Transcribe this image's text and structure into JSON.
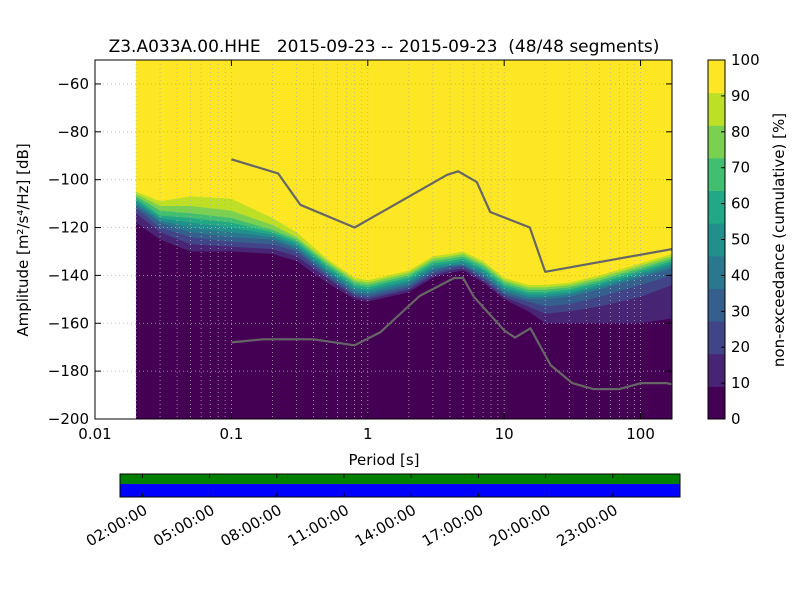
{
  "chart_data": {
    "type": "heatmap",
    "title": "Z3.A033A.00.HHE   2015-09-23 -- 2015-09-23  (48/48 segments)",
    "xlabel": "Period [s]",
    "ylabel": "Amplitude [m²/s⁴/Hz] [dB]",
    "x_scale": "log",
    "xlim": [
      0.01,
      170
    ],
    "ylim": [
      -200,
      -50
    ],
    "x_ticks": [
      {
        "value": 0.01,
        "label": "0.01"
      },
      {
        "value": 0.1,
        "label": "0.1"
      },
      {
        "value": 1,
        "label": "1"
      },
      {
        "value": 10,
        "label": "10"
      },
      {
        "value": 100,
        "label": "100"
      }
    ],
    "y_ticks": [
      {
        "value": -60,
        "label": "−60"
      },
      {
        "value": -80,
        "label": "−80"
      },
      {
        "value": -100,
        "label": "−100"
      },
      {
        "value": -120,
        "label": "−120"
      },
      {
        "value": -140,
        "label": "−140"
      },
      {
        "value": -160,
        "label": "−160"
      },
      {
        "value": -180,
        "label": "−180"
      },
      {
        "value": -200,
        "label": "−200"
      }
    ],
    "grid": true,
    "data_x_start": 0.02,
    "colorbar": {
      "label": "non-exceedance (cumulative) [%]",
      "range": [
        0,
        100
      ],
      "ticks": [
        "0",
        "10",
        "20",
        "30",
        "40",
        "50",
        "60",
        "70",
        "80",
        "90",
        "100"
      ],
      "colors": [
        "#440154",
        "#482475",
        "#414487",
        "#355f8d",
        "#2a788e",
        "#21908d",
        "#22a884",
        "#42be71",
        "#7ad151",
        "#bddf26",
        "#fde725"
      ]
    },
    "contours": [
      {
        "cum": 5,
        "points": [
          [
            0.02,
            -118
          ],
          [
            0.03,
            -125
          ],
          [
            0.05,
            -130
          ],
          [
            0.1,
            -130
          ],
          [
            0.2,
            -131
          ],
          [
            0.3,
            -134
          ],
          [
            0.5,
            -143
          ],
          [
            0.8,
            -150
          ],
          [
            1,
            -151
          ],
          [
            2,
            -147
          ],
          [
            3,
            -141
          ],
          [
            4,
            -139
          ],
          [
            5,
            -138
          ],
          [
            7,
            -143
          ],
          [
            10,
            -150
          ],
          [
            15,
            -155
          ],
          [
            20,
            -160
          ],
          [
            30,
            -160
          ],
          [
            50,
            -160
          ],
          [
            100,
            -160
          ],
          [
            170,
            -158
          ]
        ]
      },
      {
        "cum": 10,
        "points": [
          [
            0.02,
            -114
          ],
          [
            0.03,
            -122
          ],
          [
            0.05,
            -127
          ],
          [
            0.1,
            -128
          ],
          [
            0.2,
            -129
          ],
          [
            0.3,
            -132
          ],
          [
            0.5,
            -141
          ],
          [
            0.8,
            -149
          ],
          [
            1,
            -150
          ],
          [
            2,
            -146
          ],
          [
            3,
            -140
          ],
          [
            4,
            -138
          ],
          [
            5,
            -137
          ],
          [
            7,
            -142
          ],
          [
            10,
            -149
          ],
          [
            15,
            -153
          ],
          [
            20,
            -156
          ],
          [
            30,
            -155
          ],
          [
            50,
            -153
          ],
          [
            100,
            -149
          ],
          [
            170,
            -144
          ]
        ]
      },
      {
        "cum": 20,
        "points": [
          [
            0.02,
            -112
          ],
          [
            0.03,
            -120
          ],
          [
            0.05,
            -124
          ],
          [
            0.1,
            -126
          ],
          [
            0.2,
            -127
          ],
          [
            0.3,
            -130
          ],
          [
            0.5,
            -140
          ],
          [
            0.8,
            -148
          ],
          [
            1,
            -149
          ],
          [
            2,
            -145
          ],
          [
            3,
            -139
          ],
          [
            4,
            -137
          ],
          [
            5,
            -136
          ],
          [
            7,
            -141
          ],
          [
            10,
            -148
          ],
          [
            15,
            -151
          ],
          [
            20,
            -153
          ],
          [
            30,
            -152
          ],
          [
            50,
            -149
          ],
          [
            100,
            -144
          ],
          [
            170,
            -140
          ]
        ]
      },
      {
        "cum": 30,
        "points": [
          [
            0.02,
            -111
          ],
          [
            0.03,
            -118
          ],
          [
            0.05,
            -122
          ],
          [
            0.1,
            -124
          ],
          [
            0.2,
            -125
          ],
          [
            0.3,
            -129
          ],
          [
            0.5,
            -139
          ],
          [
            0.8,
            -147
          ],
          [
            1,
            -148
          ],
          [
            2,
            -144
          ],
          [
            3,
            -138
          ],
          [
            4,
            -136
          ],
          [
            5,
            -136
          ],
          [
            7,
            -140
          ],
          [
            10,
            -147
          ],
          [
            15,
            -150
          ],
          [
            20,
            -150
          ],
          [
            30,
            -149
          ],
          [
            50,
            -146
          ],
          [
            100,
            -141
          ],
          [
            170,
            -137
          ]
        ]
      },
      {
        "cum": 40,
        "points": [
          [
            0.02,
            -110
          ],
          [
            0.03,
            -117
          ],
          [
            0.05,
            -120
          ],
          [
            0.1,
            -122
          ],
          [
            0.2,
            -124
          ],
          [
            0.3,
            -128
          ],
          [
            0.5,
            -138
          ],
          [
            0.8,
            -146
          ],
          [
            1,
            -147
          ],
          [
            2,
            -143
          ],
          [
            3,
            -137
          ],
          [
            4,
            -136
          ],
          [
            5,
            -135
          ],
          [
            7,
            -139
          ],
          [
            10,
            -146
          ],
          [
            15,
            -149
          ],
          [
            20,
            -149
          ],
          [
            30,
            -148
          ],
          [
            50,
            -145
          ],
          [
            100,
            -140
          ],
          [
            170,
            -136
          ]
        ]
      },
      {
        "cum": 50,
        "points": [
          [
            0.02,
            -109
          ],
          [
            0.03,
            -116
          ],
          [
            0.05,
            -118
          ],
          [
            0.1,
            -120
          ],
          [
            0.2,
            -123
          ],
          [
            0.3,
            -127
          ],
          [
            0.5,
            -137
          ],
          [
            0.8,
            -145
          ],
          [
            1,
            -146
          ],
          [
            2,
            -142
          ],
          [
            3,
            -136
          ],
          [
            4,
            -135
          ],
          [
            5,
            -134
          ],
          [
            7,
            -138
          ],
          [
            10,
            -145
          ],
          [
            15,
            -148
          ],
          [
            20,
            -148
          ],
          [
            30,
            -147
          ],
          [
            50,
            -144
          ],
          [
            100,
            -139
          ],
          [
            170,
            -135
          ]
        ]
      },
      {
        "cum": 60,
        "points": [
          [
            0.02,
            -108
          ],
          [
            0.03,
            -115
          ],
          [
            0.05,
            -116
          ],
          [
            0.1,
            -118
          ],
          [
            0.2,
            -122
          ],
          [
            0.3,
            -126
          ],
          [
            0.5,
            -136
          ],
          [
            0.8,
            -144
          ],
          [
            1,
            -145
          ],
          [
            2,
            -141
          ],
          [
            3,
            -135
          ],
          [
            4,
            -134
          ],
          [
            5,
            -133
          ],
          [
            7,
            -137
          ],
          [
            10,
            -144
          ],
          [
            15,
            -147
          ],
          [
            20,
            -147
          ],
          [
            30,
            -146
          ],
          [
            50,
            -143
          ],
          [
            100,
            -138
          ],
          [
            170,
            -134
          ]
        ]
      },
      {
        "cum": 70,
        "points": [
          [
            0.02,
            -107
          ],
          [
            0.03,
            -113
          ],
          [
            0.05,
            -114
          ],
          [
            0.1,
            -116
          ],
          [
            0.2,
            -121
          ],
          [
            0.3,
            -125
          ],
          [
            0.5,
            -135
          ],
          [
            0.8,
            -143
          ],
          [
            1,
            -144
          ],
          [
            2,
            -140
          ],
          [
            3,
            -134
          ],
          [
            4,
            -133
          ],
          [
            5,
            -132
          ],
          [
            7,
            -136
          ],
          [
            10,
            -143
          ],
          [
            15,
            -146
          ],
          [
            20,
            -146
          ],
          [
            30,
            -145
          ],
          [
            50,
            -142
          ],
          [
            100,
            -137
          ],
          [
            170,
            -133
          ]
        ]
      },
      {
        "cum": 80,
        "points": [
          [
            0.02,
            -106
          ],
          [
            0.03,
            -111
          ],
          [
            0.05,
            -111
          ],
          [
            0.1,
            -113
          ],
          [
            0.2,
            -119
          ],
          [
            0.3,
            -124
          ],
          [
            0.5,
            -134
          ],
          [
            0.8,
            -142
          ],
          [
            1,
            -143
          ],
          [
            2,
            -139
          ],
          [
            3,
            -133
          ],
          [
            4,
            -132
          ],
          [
            5,
            -131
          ],
          [
            7,
            -135
          ],
          [
            10,
            -142
          ],
          [
            15,
            -145
          ],
          [
            20,
            -145
          ],
          [
            30,
            -144
          ],
          [
            50,
            -141
          ],
          [
            100,
            -136
          ],
          [
            170,
            -132
          ]
        ]
      },
      {
        "cum": 90,
        "points": [
          [
            0.02,
            -105
          ],
          [
            0.03,
            -109
          ],
          [
            0.05,
            -107
          ],
          [
            0.1,
            -108
          ],
          [
            0.2,
            -116
          ],
          [
            0.3,
            -122
          ],
          [
            0.5,
            -133
          ],
          [
            0.8,
            -141
          ],
          [
            1,
            -142
          ],
          [
            2,
            -138
          ],
          [
            3,
            -132
          ],
          [
            4,
            -131
          ],
          [
            5,
            -130
          ],
          [
            7,
            -134
          ],
          [
            10,
            -141
          ],
          [
            15,
            -144
          ],
          [
            20,
            -144
          ],
          [
            30,
            -143
          ],
          [
            50,
            -140
          ],
          [
            100,
            -135
          ],
          [
            170,
            -131
          ]
        ]
      },
      {
        "cum": 100,
        "points": [
          [
            0.02,
            -104
          ],
          [
            0.03,
            -107
          ],
          [
            0.05,
            -105
          ],
          [
            0.1,
            -106
          ],
          [
            0.2,
            -114
          ],
          [
            0.3,
            -121
          ],
          [
            0.5,
            -132
          ],
          [
            0.8,
            -140
          ],
          [
            1,
            -141
          ],
          [
            2,
            -137
          ],
          [
            3,
            -131
          ],
          [
            4,
            -130
          ],
          [
            5,
            -129
          ],
          [
            7,
            -133
          ],
          [
            10,
            -140
          ],
          [
            15,
            -143
          ],
          [
            20,
            -143
          ],
          [
            30,
            -142
          ],
          [
            50,
            -139
          ],
          [
            100,
            -134
          ],
          [
            170,
            -130
          ]
        ]
      }
    ],
    "noise_models": [
      {
        "id": "nhnm",
        "points": [
          [
            0.1,
            -91.5
          ],
          [
            0.22,
            -97.4
          ],
          [
            0.32,
            -110.5
          ],
          [
            0.8,
            -120
          ],
          [
            3.8,
            -98
          ],
          [
            4.6,
            -96.5
          ],
          [
            6.3,
            -101
          ],
          [
            7.9,
            -113.5
          ],
          [
            15.4,
            -120
          ],
          [
            20,
            -138.5
          ],
          [
            170,
            -129
          ]
        ]
      },
      {
        "id": "nlnm",
        "points": [
          [
            0.1,
            -168
          ],
          [
            0.17,
            -166.7
          ],
          [
            0.4,
            -166.7
          ],
          [
            0.8,
            -169.2
          ],
          [
            1.24,
            -163.7
          ],
          [
            2.4,
            -148.6
          ],
          [
            4.3,
            -141.1
          ],
          [
            5,
            -141.1
          ],
          [
            6,
            -149
          ],
          [
            10,
            -163
          ],
          [
            12,
            -166
          ],
          [
            15.6,
            -162.1
          ],
          [
            21.9,
            -177.5
          ],
          [
            31.6,
            -185
          ],
          [
            45,
            -187.5
          ],
          [
            70,
            -187.5
          ],
          [
            101,
            -185
          ],
          [
            154,
            -185
          ],
          [
            170,
            -185.5
          ]
        ]
      }
    ],
    "noise_model_color": "#666666",
    "coverage": {
      "time_ticks": [
        "02:00:00",
        "05:00:00",
        "08:00:00",
        "11:00:00",
        "14:00:00",
        "17:00:00",
        "20:00:00",
        "23:00:00"
      ],
      "data_color": "#008000",
      "psd_color": "#0000ff"
    }
  }
}
